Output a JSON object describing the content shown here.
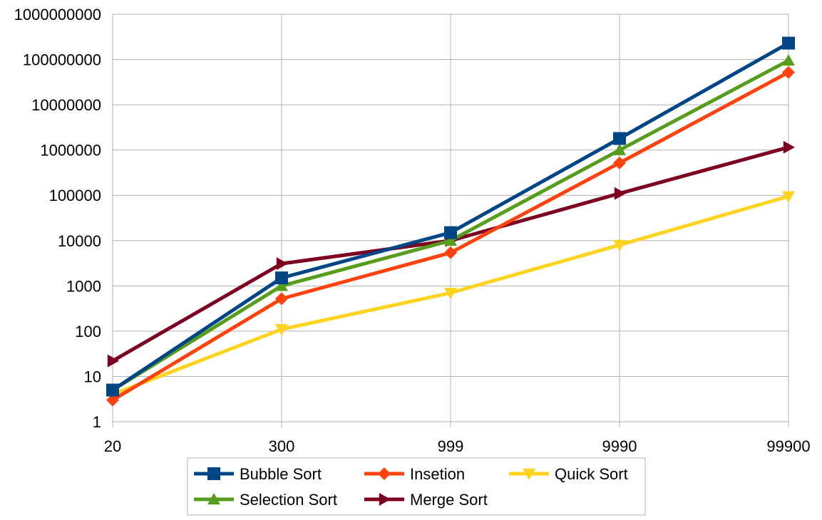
{
  "chart_data": {
    "type": "line",
    "title": "",
    "xlabel": "",
    "ylabel": "",
    "y_scale": "log",
    "ylim": [
      1,
      1000000000
    ],
    "y_ticks": [
      "1",
      "10",
      "100",
      "1000",
      "10000",
      "100000",
      "1000000",
      "10000000",
      "100000000",
      "1000000000"
    ],
    "categories": [
      "20",
      "300",
      "999",
      "9990",
      "99900"
    ],
    "grid": "horizontal",
    "legend_position": "bottom",
    "series": [
      {
        "name": "Bubble Sort",
        "color": "#004586",
        "marker": "square",
        "values": [
          5,
          1500,
          15000,
          1800000,
          230000000
        ]
      },
      {
        "name": "Insetion",
        "color": "#ff420e",
        "marker": "diamond",
        "values": [
          3,
          520,
          5400,
          520000,
          52000000
        ]
      },
      {
        "name": "Quick Sort",
        "color": "#ffd320",
        "marker": "triangle-down",
        "values": [
          4,
          110,
          700,
          8000,
          95000
        ]
      },
      {
        "name": "Selection Sort",
        "color": "#579d1c",
        "marker": "triangle-up",
        "values": [
          5,
          1000,
          10000,
          1000000,
          95000000
        ]
      },
      {
        "name": "Merge Sort",
        "color": "#7e0021",
        "marker": "triangle-right",
        "values": [
          22,
          3100,
          10000,
          110000,
          1150000
        ]
      }
    ]
  }
}
